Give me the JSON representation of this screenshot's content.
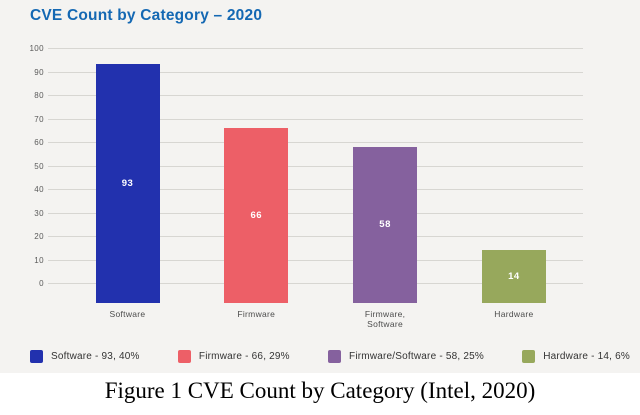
{
  "chart_data": {
    "type": "bar",
    "title": "CVE Count by Category – 2020",
    "categories": [
      "Software",
      "Firmware",
      "Firmware,\nSoftware",
      "Hardware"
    ],
    "values": [
      93,
      66,
      58,
      14
    ],
    "value_labels": [
      "93",
      "66",
      "58",
      "14"
    ],
    "bar_colors": [
      "#2231ae",
      "#ed5f67",
      "#85619e",
      "#97a85c"
    ],
    "xlabel": "",
    "ylabel": "",
    "ylim": [
      0,
      100
    ],
    "yticks": [
      100,
      90,
      80,
      70,
      60,
      50,
      40,
      30,
      20,
      10,
      0
    ],
    "grid": true,
    "legend_position": "bottom",
    "legend": [
      {
        "label": "Software - 93, 40%",
        "color": "#2231ae"
      },
      {
        "label": "Firmware - 66, 29%",
        "color": "#ed5f67"
      },
      {
        "label": "Firmware/Software - 58, 25%",
        "color": "#85619e"
      },
      {
        "label": "Hardware - 14, 6%",
        "color": "#97a85c"
      }
    ]
  },
  "caption": "Figure 1 CVE Count by Category (Intel, 2020)",
  "colors": {
    "panel_background": "#f4f3f1",
    "title_text": "#1468b3",
    "gridline": "#d7d6d2",
    "tick_text": "#5a5a5a",
    "category_text": "#4c4c4c",
    "bar_value_text": "#ffffff",
    "legend_text": "#333333",
    "caption_text": "#000000"
  }
}
